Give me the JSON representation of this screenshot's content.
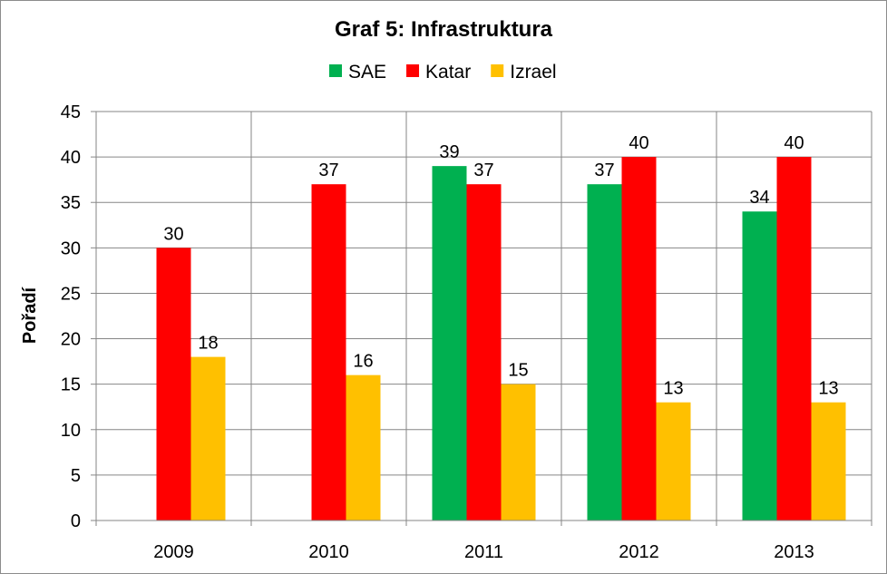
{
  "chart_data": {
    "type": "bar",
    "title": "Graf 5: Infrastruktura",
    "xlabel": "",
    "ylabel": "Pořadí",
    "categories": [
      "2009",
      "2010",
      "2011",
      "2012",
      "2013"
    ],
    "series": [
      {
        "name": "SAE",
        "color": "#00b050",
        "values": [
          null,
          null,
          39,
          37,
          34
        ]
      },
      {
        "name": "Katar",
        "color": "#ff0000",
        "values": [
          30,
          37,
          37,
          40,
          40
        ]
      },
      {
        "name": "Izrael",
        "color": "#ffc000",
        "values": [
          18,
          16,
          15,
          13,
          13
        ]
      }
    ],
    "ylim": [
      0,
      45
    ],
    "yticks": [
      "0",
      "5",
      "10",
      "15",
      "20",
      "25",
      "30",
      "35",
      "40",
      "45"
    ],
    "grid": true,
    "legend_position": "top"
  }
}
